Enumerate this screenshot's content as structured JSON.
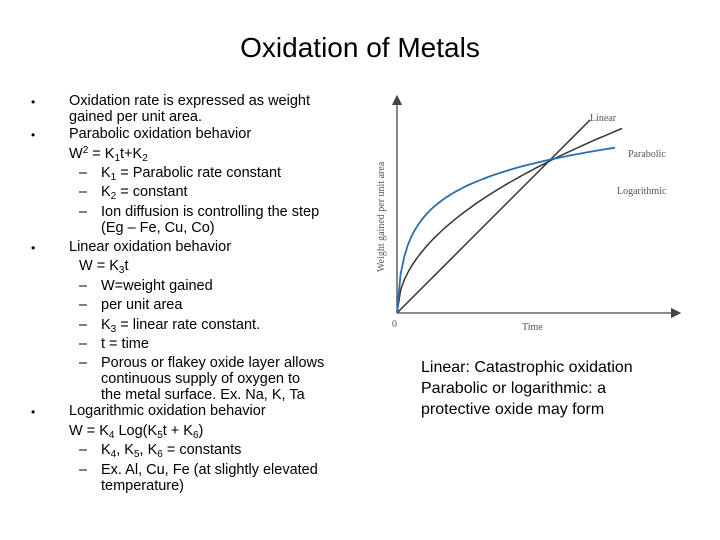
{
  "title": "Oxidation of Metals",
  "bullet_glyph": "•",
  "left": {
    "b1": "Oxidation rate is expressed as weight",
    "b1_cont": "gained per unit area.",
    "b2": "Parabolic oxidation behavior",
    "w2_base": "W",
    "w2_exp": "2",
    "w2_eq": " = K",
    "w2_k1": "1",
    "w2_t": "t+K",
    "w2_k2": "2",
    "s1_dash": "–",
    "s1_k": "K",
    "s1_sub": "1",
    "s1_rest": " = Parabolic rate constant",
    "s2_dash": "–",
    "s2_k": "K",
    "s2_sub": "2",
    "s2_rest": " = constant",
    "s3_dash": "–",
    "s3": "Ion diffusion is controlling the step",
    "s3_cont": "(Eg – Fe, Cu, Co)",
    "b3": "Linear oxidation behavior",
    "lin_eq": "W = K",
    "lin_sub": "3",
    "lin_t": "t",
    "l1_dash": "–",
    "l1": "W=weight gained",
    "l2_dash": "–",
    "l2": "per unit area",
    "l3_dash": "–",
    "l3_k": "K",
    "l3_sub": "3",
    "l3_rest": " = linear rate constant.",
    "l4_dash": "–",
    "l4": "t = time",
    "l5_dash": "–",
    "l5": "Porous or flakey oxide layer allows",
    "l5_cont1": "continuous supply of oxygen to",
    "l5_cont2": "the metal surface. Ex. Na, K, Ta",
    "b4": "Logarithmic oxidation behavior",
    "log_a": "W = K",
    "log_s4": "4",
    "log_b": " Log(K",
    "log_s5": "5",
    "log_c": "t + K",
    "log_s6": "6",
    "log_d": ")",
    "g1_dash": "–",
    "g1_a": "K",
    "g1_s4": "4",
    "g1_b": ", K",
    "g1_s5": "5",
    "g1_c": ", K",
    "g1_s6": "6",
    "g1_d": " = constants",
    "g2_dash": "–",
    "g2": "Ex. Al, Cu, Fe (at slightly elevated",
    "g2_cont": "temperature)"
  },
  "right_note": {
    "line1": "Linear: Catastrophic oxidation",
    "line2": "Parabolic or logarithmic: a",
    "line3": "protective oxide may form"
  },
  "chart_data": {
    "type": "line",
    "xlabel": "Time",
    "ylabel": "Weight gained per unit area",
    "origin_label": "0",
    "series": [
      {
        "name": "Linear",
        "color": "#333333"
      },
      {
        "name": "Parabolic",
        "color": "#333333"
      },
      {
        "name": "Logarithmic",
        "color": "#2a6fb0"
      }
    ]
  }
}
